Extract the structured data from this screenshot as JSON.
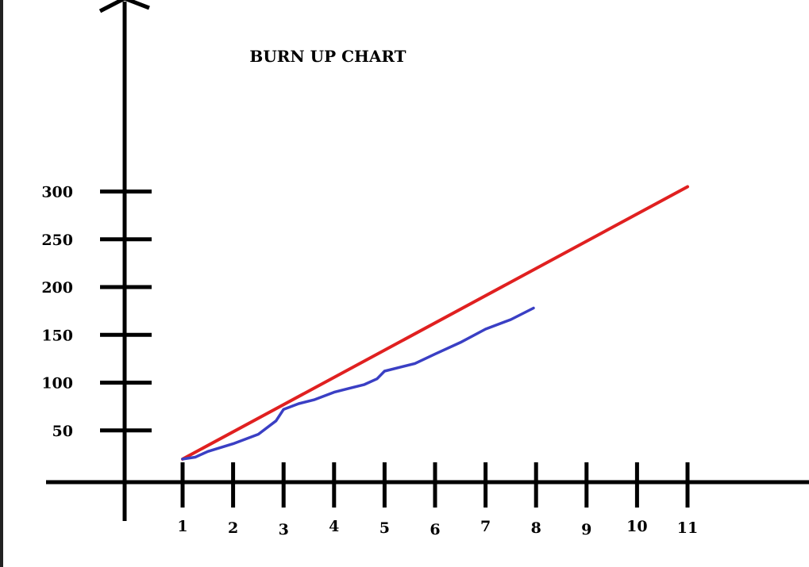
{
  "chart_data": {
    "type": "line",
    "title": "BURN UP CHART",
    "xlabel": "",
    "ylabel": "",
    "x_ticks": [
      "1",
      "2",
      "3",
      "4",
      "5",
      "6",
      "7",
      "8",
      "9",
      "10",
      "11"
    ],
    "y_ticks": [
      "50",
      "100",
      "150",
      "200",
      "250",
      "300"
    ],
    "xlim": [
      1,
      11
    ],
    "grid": false,
    "legend": "none",
    "series": [
      {
        "color": "#e02020",
        "x": [
          1,
          11
        ],
        "y": [
          20,
          305
        ]
      },
      {
        "color": "#3a3fc4",
        "x": [
          1,
          1.25,
          1.5,
          2,
          2.5,
          2.85,
          3.0,
          3.3,
          3.6,
          4,
          4.3,
          4.6,
          4.85,
          5.0,
          5.3,
          5.6,
          6.0,
          6.5,
          7.0,
          7.5,
          7.95
        ],
        "y": [
          20,
          22,
          28,
          36,
          46,
          60,
          72,
          78,
          82,
          90,
          94,
          98,
          104,
          112,
          116,
          120,
          130,
          142,
          156,
          166,
          178
        ]
      }
    ]
  }
}
